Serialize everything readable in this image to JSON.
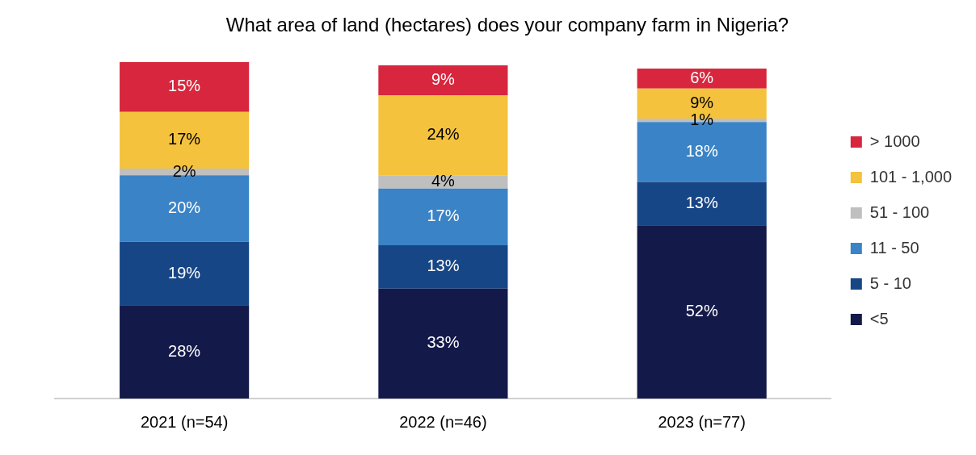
{
  "chart_data": {
    "type": "bar",
    "title": "What area of land (hectares) does your company farm in Nigeria?",
    "categories": [
      "2021 (n=54)",
      "2022 (n=46)",
      "2023 (n=77)"
    ],
    "stacked": true,
    "legend": "right",
    "grid": false,
    "series": [
      {
        "name": "<5",
        "color": "#131a4a",
        "values": [
          28,
          33,
          52
        ],
        "value_labels": [
          "28%",
          "33%",
          "52%"
        ]
      },
      {
        "name": "5 - 10",
        "color": "#174686",
        "values": [
          19,
          13,
          13
        ],
        "value_labels": [
          "19%",
          "13%",
          "13%"
        ]
      },
      {
        "name": "11 - 50",
        "color": "#3a83c6",
        "values": [
          20,
          17,
          18
        ],
        "value_labels": [
          "20%",
          "17%",
          "18%"
        ]
      },
      {
        "name": "51 - 100",
        "color": "#bfbfbf",
        "values": [
          2,
          4,
          1
        ],
        "value_labels": [
          "2%",
          "4%",
          "1%"
        ]
      },
      {
        "name": "101 - 1,000",
        "color": "#f4c23c",
        "values": [
          17,
          24,
          9
        ],
        "value_labels": [
          "17%",
          "24%",
          "9%"
        ]
      },
      {
        "name": "> 1000",
        "color": "#d7263d",
        "values": [
          15,
          9,
          6
        ],
        "value_labels": [
          "15%",
          "9%",
          "6%"
        ]
      }
    ]
  }
}
